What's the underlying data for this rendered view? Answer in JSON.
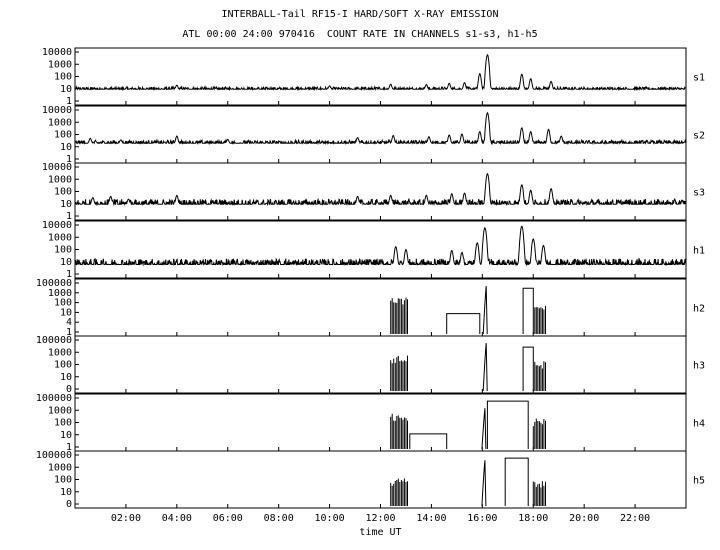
{
  "chart_data": {
    "type": "line",
    "title": "INTERBALL-Tail RF15-I HARD/SOFT X-RAY EMISSION",
    "subtitle": "ATL 00:00 24:00 970416  COUNT RATE IN CHANNELS s1-s3, h1-h5",
    "xlabel": "time UT",
    "x_unit": "hours UT",
    "xlim": [
      0,
      24
    ],
    "x_ticks": [
      {
        "hour": 2,
        "label": "02:00"
      },
      {
        "hour": 4,
        "label": "04:00"
      },
      {
        "hour": 6,
        "label": "06:00"
      },
      {
        "hour": 8,
        "label": "08:00"
      },
      {
        "hour": 10,
        "label": "10:00"
      },
      {
        "hour": 12,
        "label": "12:00"
      },
      {
        "hour": 14,
        "label": "14:00"
      },
      {
        "hour": 16,
        "label": "16:00"
      },
      {
        "hour": 18,
        "label": "18:00"
      },
      {
        "hour": 20,
        "label": "20:00"
      },
      {
        "hour": 22,
        "label": "22:00"
      }
    ],
    "yscale": "log",
    "panels": [
      {
        "name": "s1",
        "ylim": [
          1,
          10000
        ],
        "y_tick_labels": [
          "10000",
          "1000",
          "100",
          "10",
          "1"
        ],
        "baseline": 12,
        "noise": 0.35,
        "events": [
          [
            4.0,
            25
          ],
          [
            10.0,
            22
          ],
          [
            12.4,
            30
          ],
          [
            13.8,
            28
          ],
          [
            14.7,
            35
          ],
          [
            15.3,
            40
          ],
          [
            15.9,
            200
          ],
          [
            16.2,
            6000
          ],
          [
            16.3,
            20
          ],
          [
            17.55,
            180
          ],
          [
            17.9,
            80
          ],
          [
            18.7,
            50
          ]
        ]
      },
      {
        "name": "s2",
        "ylim": [
          1,
          10000
        ],
        "y_tick_labels": [
          "10000",
          "1000",
          "100",
          "10",
          "1"
        ],
        "baseline": 25,
        "noise": 0.45,
        "events": [
          [
            0.6,
            60
          ],
          [
            1.8,
            45
          ],
          [
            4.0,
            90
          ],
          [
            6.0,
            50
          ],
          [
            11.1,
            70
          ],
          [
            12.5,
            100
          ],
          [
            13.9,
            80
          ],
          [
            14.7,
            110
          ],
          [
            15.2,
            130
          ],
          [
            15.9,
            200
          ],
          [
            16.2,
            6000
          ],
          [
            17.55,
            400
          ],
          [
            17.9,
            200
          ],
          [
            18.6,
            300
          ],
          [
            19.1,
            90
          ]
        ]
      },
      {
        "name": "s3",
        "ylim": [
          1,
          10000
        ],
        "y_tick_labels": [
          "10000",
          "1000",
          "100",
          "10",
          "1"
        ],
        "baseline": 12,
        "noise": 0.8,
        "events": [
          [
            0.7,
            40
          ],
          [
            1.4,
            50
          ],
          [
            2.1,
            30
          ],
          [
            4.0,
            60
          ],
          [
            11.1,
            50
          ],
          [
            12.4,
            60
          ],
          [
            13.8,
            60
          ],
          [
            14.8,
            80
          ],
          [
            15.3,
            90
          ],
          [
            16.2,
            3000
          ],
          [
            17.55,
            400
          ],
          [
            17.9,
            150
          ],
          [
            18.7,
            200
          ]
        ]
      },
      {
        "name": "h1",
        "ylim": [
          1,
          10000
        ],
        "y_tick_labels": [
          "10000",
          "1000",
          "100",
          "10",
          "1"
        ],
        "baseline": 8,
        "noise": 0.9,
        "events": [
          [
            12.6,
            200
          ],
          [
            13.0,
            120
          ],
          [
            14.8,
            100
          ],
          [
            15.2,
            70
          ],
          [
            15.8,
            400
          ],
          [
            16.1,
            6000
          ],
          [
            17.55,
            8000
          ],
          [
            18.0,
            800
          ],
          [
            18.4,
            250
          ]
        ]
      },
      {
        "name": "h2",
        "ylim": [
          1,
          100000
        ],
        "y_tick_labels": [
          "100000",
          "1000",
          "100",
          "10",
          "4",
          "1"
        ],
        "segments": [
          {
            "type": "spikes",
            "from": 12.4,
            "to": 13.1,
            "level": 5000
          },
          {
            "type": "step",
            "from": 14.6,
            "to": 15.9,
            "level": 100
          },
          {
            "type": "spike",
            "at": 16.15,
            "level": 50000
          },
          {
            "type": "step",
            "from": 17.6,
            "to": 18.0,
            "level": 30000
          },
          {
            "type": "spikes",
            "from": 18.0,
            "to": 18.5,
            "level": 1000
          }
        ]
      },
      {
        "name": "h3",
        "ylim": [
          1,
          100000
        ],
        "y_tick_labels": [
          "100000",
          "1000",
          "100",
          "10",
          "0"
        ],
        "segments": [
          {
            "type": "spikes",
            "from": 12.4,
            "to": 13.1,
            "level": 3000
          },
          {
            "type": "spike",
            "at": 16.15,
            "level": 50000
          },
          {
            "type": "step",
            "from": 17.6,
            "to": 18.0,
            "level": 20000
          },
          {
            "type": "spikes",
            "from": 18.0,
            "to": 18.5,
            "level": 1000
          }
        ]
      },
      {
        "name": "h4",
        "ylim": [
          1,
          100000
        ],
        "y_tick_labels": [
          "100000",
          "1000",
          "100",
          "10",
          "1"
        ],
        "segments": [
          {
            "type": "spikes",
            "from": 12.4,
            "to": 13.1,
            "level": 3000
          },
          {
            "type": "step",
            "from": 13.15,
            "to": 14.6,
            "level": 30
          },
          {
            "type": "spike",
            "at": 16.1,
            "level": 10000
          },
          {
            "type": "step",
            "from": 16.2,
            "to": 17.8,
            "level": 50000
          },
          {
            "type": "spikes",
            "from": 18.0,
            "to": 18.5,
            "level": 1000
          }
        ]
      },
      {
        "name": "h5",
        "ylim": [
          1,
          100000
        ],
        "y_tick_labels": [
          "100000",
          "1000",
          "100",
          "10",
          "0"
        ],
        "segments": [
          {
            "type": "spikes",
            "from": 12.4,
            "to": 13.1,
            "level": 500
          },
          {
            "type": "spike",
            "at": 16.1,
            "level": 30000
          },
          {
            "type": "step",
            "from": 16.9,
            "to": 17.8,
            "level": 50000
          },
          {
            "type": "spikes",
            "from": 18.0,
            "to": 18.5,
            "level": 300
          }
        ]
      }
    ]
  }
}
